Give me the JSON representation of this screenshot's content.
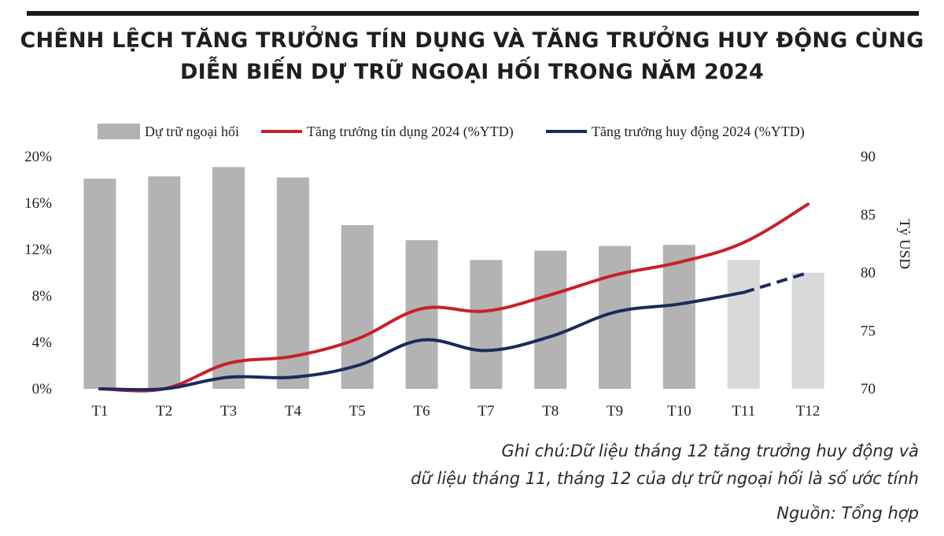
{
  "title": {
    "line1": "CHÊNH LỆCH TĂNG TRƯỞNG TÍN DỤNG VÀ TĂNG TRƯỞNG HUY ĐỘNG CÙNG",
    "line2": "DIỄN BIẾN DỰ TRỮ NGOẠI HỐI TRONG NĂM 2024"
  },
  "notes": {
    "line1": "Ghi chú:Dữ liệu tháng 12 tăng trưởng huy động và",
    "line2": "dữ liệu tháng 11, tháng 12 của dự trữ ngoại hối là số ước tính",
    "source": "Nguồn: Tổng hợp"
  },
  "colors": {
    "bar": "#b3b3b3",
    "bar_estimate": "#d9d9db",
    "credit": "#c8202a",
    "deposit": "#1c2a5c"
  },
  "chart_data": {
    "type": "bar",
    "categories": [
      "T1",
      "T2",
      "T3",
      "T4",
      "T5",
      "T6",
      "T7",
      "T8",
      "T9",
      "T10",
      "T11",
      "T12"
    ],
    "left_axis": {
      "ticks": [
        "0%",
        "4%",
        "8%",
        "12%",
        "16%",
        "20%"
      ],
      "range": [
        0,
        20
      ]
    },
    "right_axis": {
      "ticks": [
        "70",
        "75",
        "80",
        "85",
        "90"
      ],
      "range": [
        70,
        90
      ],
      "label": "Tỷ USD"
    },
    "series": [
      {
        "name": "Dự trữ ngoại hối",
        "type": "bar",
        "axis": "right",
        "values": [
          88.1,
          88.3,
          89.1,
          88.2,
          84.1,
          82.8,
          81.1,
          81.9,
          82.3,
          82.4,
          81.1,
          80.0
        ],
        "estimated": [
          false,
          false,
          false,
          false,
          false,
          false,
          false,
          false,
          false,
          false,
          true,
          true
        ]
      },
      {
        "name": "Tăng trưởng tín dụng 2024 (%YTD)",
        "type": "line",
        "axis": "left",
        "values": [
          0.0,
          0.0,
          2.2,
          2.8,
          4.3,
          6.9,
          6.7,
          8.1,
          9.8,
          10.9,
          12.6,
          15.9
        ]
      },
      {
        "name": "Tăng trưởng huy động 2024 (%YTD)",
        "type": "line",
        "axis": "left",
        "values": [
          0.0,
          0.0,
          1.0,
          1.0,
          2.0,
          4.2,
          3.3,
          4.5,
          6.6,
          7.3,
          8.3,
          10.0
        ],
        "estimated_from_index": 10
      }
    ]
  }
}
